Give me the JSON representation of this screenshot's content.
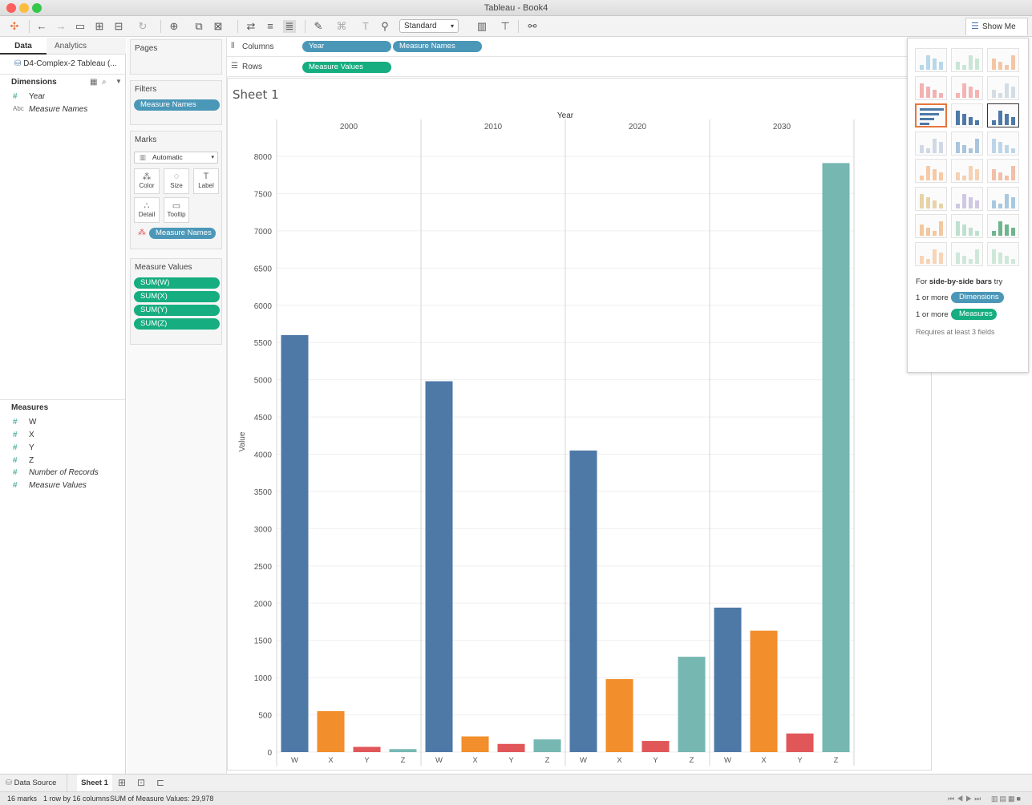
{
  "window": {
    "title": "Tableau - Book4"
  },
  "toolbar": {
    "fit_mode": "Standard",
    "show_me_label": "Show Me"
  },
  "data_pane": {
    "tabs": [
      "Data",
      "Analytics"
    ],
    "datasource": "D4-Complex-2 Tableau (...",
    "dimensions_title": "Dimensions",
    "dimensions": [
      "Year",
      "Measure Names"
    ],
    "measures_title": "Measures",
    "measures": [
      "W",
      "X",
      "Y",
      "Z",
      "Number of Records",
      "Measure Values"
    ]
  },
  "cards": {
    "pages_title": "Pages",
    "filters_title": "Filters",
    "filter_pill": "Measure Names",
    "marks_title": "Marks",
    "mark_type": "Automatic",
    "mark_buttons": [
      "Color",
      "Size",
      "Label",
      "Detail",
      "Tooltip"
    ],
    "color_pill": "Measure Names",
    "measure_values_title": "Measure Values",
    "measure_values": [
      "SUM(W)",
      "SUM(X)",
      "SUM(Y)",
      "SUM(Z)"
    ]
  },
  "shelves": {
    "columns_label": "Columns",
    "columns": [
      "Year",
      "Measure Names"
    ],
    "rows_label": "Rows",
    "rows": [
      "Measure Values"
    ]
  },
  "sheet_title": "Sheet 1",
  "chart_data": {
    "type": "bar",
    "title": "",
    "header_label": "Year",
    "groups": [
      "2000",
      "2010",
      "2020",
      "2030"
    ],
    "categories": [
      "W",
      "X",
      "Y",
      "Z"
    ],
    "ylabel": "Value",
    "ylim": [
      0,
      8000
    ],
    "yticks": [
      0,
      500,
      1000,
      1500,
      2000,
      2500,
      3000,
      3500,
      4000,
      4500,
      5000,
      5500,
      6000,
      6500,
      7000,
      7500,
      8000
    ],
    "colors": {
      "W": "#4e79a7",
      "X": "#f28e2b",
      "Y": "#e15759",
      "Z": "#76b7b2"
    },
    "series": [
      {
        "name": "2000",
        "values": [
          5600,
          550,
          70,
          40
        ]
      },
      {
        "name": "2010",
        "values": [
          4980,
          210,
          110,
          170
        ]
      },
      {
        "name": "2020",
        "values": [
          4050,
          980,
          150,
          1280
        ]
      },
      {
        "name": "2030",
        "values": [
          1940,
          1630,
          250,
          7910
        ]
      }
    ],
    "grid": true
  },
  "show_me": {
    "hint_prefix": "For ",
    "hint_bold": "side-by-side bars",
    "hint_suffix": " try",
    "dims_prefix": "1 or more",
    "dims_pill": "Dimensions",
    "meas_prefix": "1 or more",
    "meas_pill": "Measures",
    "requirement": "Requires at least 3 fields"
  },
  "tabs_bar": {
    "data_source": "Data Source",
    "sheet": "Sheet 1"
  },
  "status": {
    "marks": "16 marks",
    "rows_cols": "1 row by 16 columns",
    "sum": "SUM of Measure Values: 29,978"
  }
}
